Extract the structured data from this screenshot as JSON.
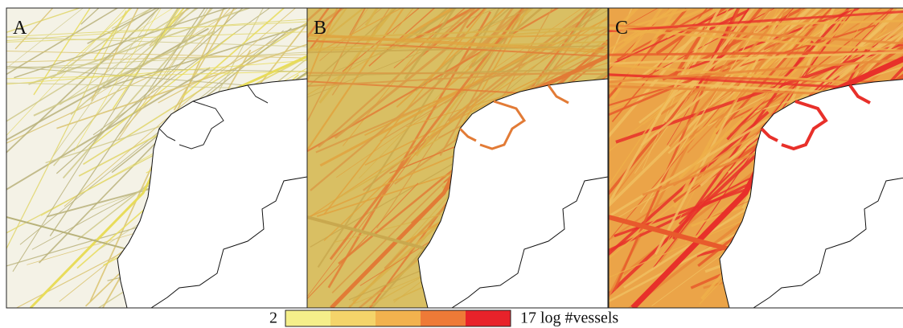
{
  "panels": [
    {
      "label": "A"
    },
    {
      "label": "B"
    },
    {
      "label": "C"
    }
  ],
  "legend": {
    "min_label": "2",
    "max_label": "17 log #vessels",
    "colors": [
      "#f5ef8a",
      "#f4d46a",
      "#f2b24e",
      "#ee7a37",
      "#e8222a"
    ]
  }
}
